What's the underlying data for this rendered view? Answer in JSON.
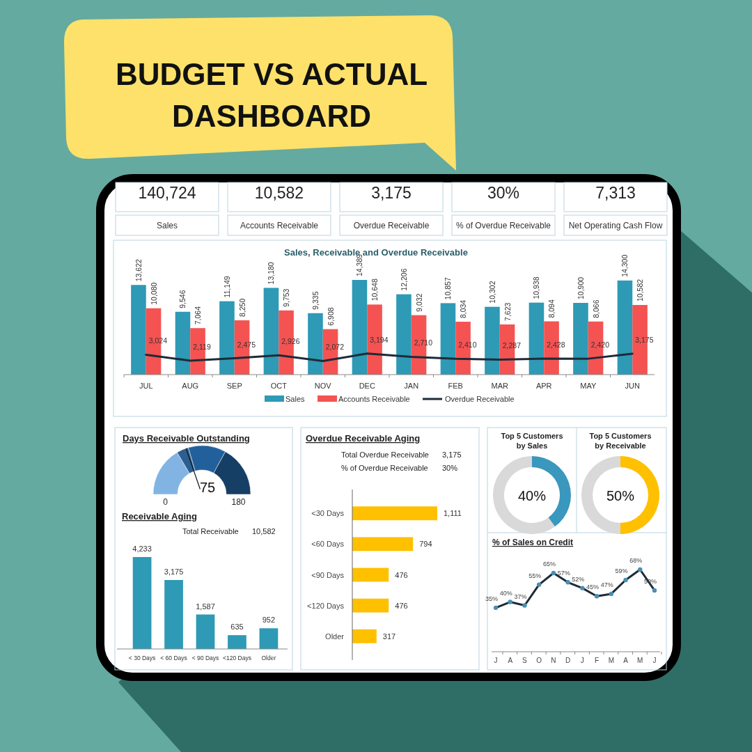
{
  "chart_data": [
    {
      "type": "other",
      "title": "BUDGET VS ACTUAL\nDASHBOARD",
      "annotations": [
        "140,724",
        "Sales",
        "10,582",
        "Accounts Receivable",
        "3,175",
        "Overdue Receivable",
        "30%",
        "% of Overdue Receivable",
        "7,313",
        "Net Operating Cash Flow"
      ]
    },
    {
      "type": "bar",
      "title": "Sales, Receivable and Overdue Receivable",
      "categories": [
        "JUL",
        "AUG",
        "SEP",
        "OCT",
        "NOV",
        "DEC",
        "JAN",
        "FEB",
        "MAR",
        "APR",
        "MAY",
        "JUN"
      ],
      "legend": "bottom",
      "series": [
        {
          "name": "Sales",
          "color": "#2e9ab5",
          "values": [
            13622,
            9546,
            11149,
            13180,
            9335,
            14389,
            12206,
            10857,
            10302,
            10938,
            10900,
            14300
          ],
          "value_labels": [
            "13,622",
            "9,546",
            "11,149",
            "13,180",
            "9,335",
            "14,389",
            "12,206",
            "10,857",
            "10,302",
            "10,938",
            "10,900",
            "14,300"
          ]
        },
        {
          "name": "Accounts Receivable",
          "color": "#f45352",
          "values": [
            10080,
            7064,
            8250,
            9753,
            6908,
            10648,
            9032,
            8034,
            7623,
            8094,
            8066,
            10582
          ],
          "value_labels": [
            "10,080",
            "7,064",
            "8,250",
            "9,753",
            "6,908",
            "10,648",
            "9,032",
            "8,034",
            "7,623",
            "8,094",
            "8,066",
            "10,582"
          ]
        },
        {
          "name": "Overdue Receivable",
          "type": "line",
          "color": "#1d2b38",
          "values": [
            3024,
            2119,
            2475,
            2926,
            2072,
            3194,
            2710,
            2410,
            2287,
            2428,
            2420,
            3175
          ],
          "value_labels": [
            "3,024",
            "2,119",
            "2,475",
            "2,926",
            "2,072",
            "3,194",
            "2,710",
            "2,410",
            "2,287",
            "2,428",
            "2,420",
            "3,175"
          ]
        }
      ]
    },
    {
      "type": "donut",
      "title": "Days Receivable Outstanding",
      "categories": [
        null,
        null,
        null,
        null
      ],
      "values": [
        33,
        8,
        25,
        34
      ],
      "colors": [
        "#82b4e3",
        "#2c5f91",
        "#22609c",
        "#163f66"
      ],
      "annotations": [
        "0",
        "180",
        "75"
      ]
    },
    {
      "type": "bar",
      "title": "Receivable Aging",
      "categories": [
        "< 30 Days",
        "< 60 Days",
        "< 90 Days",
        "<120 Days",
        "Older"
      ],
      "values": [
        4233,
        3175,
        1587,
        635,
        952
      ],
      "value_labels": [
        "4,233",
        "3,175",
        "1,587",
        "635",
        "952"
      ],
      "color": "#2e9ab5",
      "annotations": [
        "Total Receivable",
        "10,582"
      ]
    },
    {
      "type": "bar",
      "orientation": "horizontal",
      "title": "Overdue Receivable Aging",
      "categories": [
        "<30 Days",
        "<60 Days",
        "<90 Days",
        "<120 Days",
        "Older"
      ],
      "values": [
        1111,
        794,
        476,
        476,
        317
      ],
      "value_labels": [
        "1,111",
        "794",
        "476",
        "476",
        "317"
      ],
      "color": "#ffc000",
      "annotations": [
        "Total  Overdue Receivable",
        "3,175",
        "% of Overdue Receivable",
        "30%"
      ]
    },
    {
      "type": "donut",
      "title": "Top 5 Customers\nby Sales",
      "categories": [
        null,
        null
      ],
      "values": [
        40,
        60
      ],
      "colors": [
        "#3a97bd",
        "#d9d9d9"
      ],
      "annotations": [
        "40%"
      ]
    },
    {
      "type": "donut",
      "title": "Top 5 Customers\nby Receivable",
      "categories": [
        null,
        null
      ],
      "values": [
        50,
        50
      ],
      "colors": [
        "#ffc000",
        "#d9d9d9"
      ],
      "annotations": [
        "50%"
      ]
    },
    {
      "type": "line",
      "title": "% of Sales on Credit",
      "categories": [
        "J",
        "A",
        "S",
        "O",
        "N",
        "D",
        "J",
        "F",
        "M",
        "A",
        "M",
        "J"
      ],
      "values": [
        35,
        40,
        37,
        55,
        65,
        57,
        52,
        45,
        47,
        59,
        68,
        50
      ],
      "color": "#1d2b38",
      "marker": "circle",
      "value_labels": [
        "35%",
        "40%",
        "37%",
        "55%",
        "65%",
        "57%",
        "52%",
        "45%",
        "47%",
        "59%",
        "68%",
        "50%"
      ]
    }
  ]
}
